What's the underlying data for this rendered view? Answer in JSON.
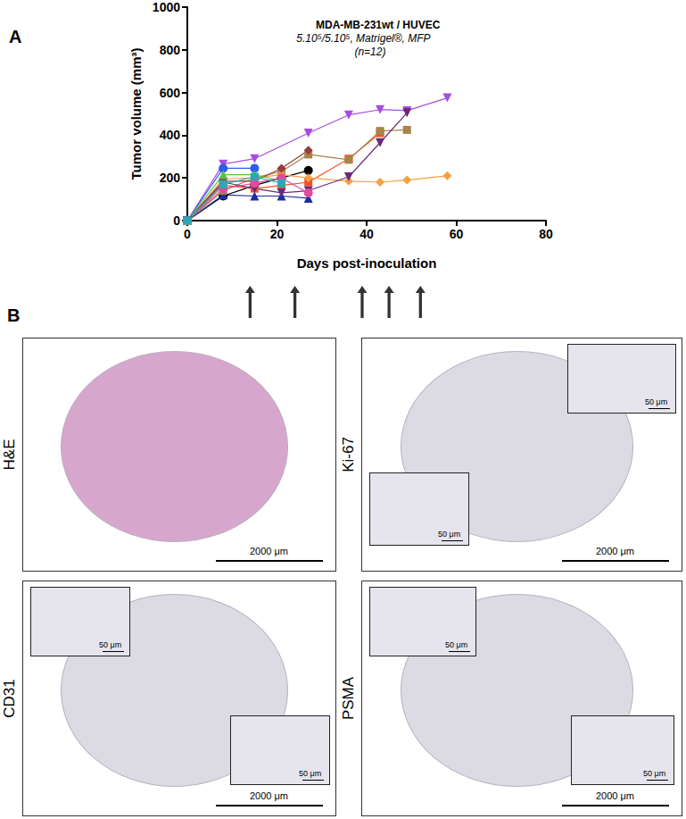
{
  "chart_data": {
    "type": "line",
    "annotation": [
      "MDA-MB-231wt / HUVEC",
      "5.10⁵/5.10⁵, Matrigel®, MFP",
      "(n=12)"
    ],
    "x_label": "Days post-inoculation",
    "y_label": "Tumor volume (mm³)",
    "xlim": [
      0,
      80
    ],
    "xticks": [
      0,
      20,
      40,
      60,
      80
    ],
    "ylim": [
      0,
      1000
    ],
    "yticks": [
      0,
      200,
      400,
      600,
      800,
      1000
    ],
    "grid": false,
    "arrow_days": [
      14,
      24,
      39,
      45,
      52
    ],
    "series": [
      {
        "color": "#a64de0",
        "marker": "triangle-down",
        "x": [
          0,
          8,
          15,
          27,
          36,
          43,
          49,
          58
        ],
        "values": [
          0,
          265,
          290,
          410,
          495,
          520,
          515,
          575
        ]
      },
      {
        "color": "#2f5de8",
        "marker": "circle",
        "x": [
          0,
          8,
          15
        ],
        "values": [
          0,
          245,
          245
        ]
      },
      {
        "color": "#000000",
        "marker": "circle",
        "x": [
          0,
          8,
          15,
          21,
          27
        ],
        "values": [
          0,
          115,
          165,
          200,
          235
        ]
      },
      {
        "color": "#1a2fa0",
        "marker": "triangle",
        "x": [
          0,
          8,
          15,
          21,
          27
        ],
        "values": [
          0,
          120,
          115,
          115,
          105
        ]
      },
      {
        "color": "#f0522a",
        "marker": "square",
        "x": [
          0,
          8,
          15,
          21,
          27,
          36,
          43
        ],
        "values": [
          0,
          165,
          150,
          165,
          180,
          290,
          410
        ]
      },
      {
        "color": "#a8844a",
        "marker": "square",
        "x": [
          0,
          8,
          15,
          21,
          27,
          36,
          43,
          49
        ],
        "values": [
          0,
          140,
          200,
          230,
          310,
          285,
          420,
          425
        ]
      },
      {
        "color": "#f5a040",
        "marker": "diamond",
        "x": [
          0,
          8,
          15,
          21,
          27,
          36,
          43,
          49,
          58
        ],
        "values": [
          0,
          195,
          200,
          215,
          200,
          185,
          180,
          190,
          210
        ]
      },
      {
        "color": "#6a2a78",
        "marker": "triangle-down",
        "x": [
          0,
          8,
          15,
          21,
          27,
          36,
          43,
          49
        ],
        "values": [
          0,
          180,
          150,
          130,
          140,
          205,
          365,
          505
        ]
      },
      {
        "color": "#9a3a3a",
        "marker": "diamond",
        "x": [
          0,
          8,
          15,
          21,
          27
        ],
        "values": [
          0,
          185,
          185,
          245,
          330
        ]
      },
      {
        "color": "#5cc04a",
        "marker": "triangle",
        "x": [
          0,
          8,
          15,
          21
        ],
        "values": [
          0,
          215,
          215,
          185
        ]
      },
      {
        "color": "#e04aa0",
        "marker": "circle",
        "x": [
          0,
          8,
          15,
          21,
          27
        ],
        "values": [
          0,
          150,
          175,
          200,
          130
        ]
      },
      {
        "color": "#2aa8b8",
        "marker": "square",
        "x": [
          0,
          8,
          15,
          21
        ],
        "values": [
          0,
          170,
          205,
          175
        ]
      }
    ]
  },
  "panel_labels": [
    "A",
    "B"
  ],
  "panel_b": [
    {
      "stain": "H&E",
      "scale_bar": "2000 μm",
      "insets": []
    },
    {
      "stain": "Ki-67",
      "scale_bar": "2000 μm",
      "insets": [
        "50 μm",
        "50 μm"
      ]
    },
    {
      "stain": "CD31",
      "scale_bar": "2000 μm",
      "insets": [
        "50 μm",
        "50 μm"
      ]
    },
    {
      "stain": "PSMA",
      "scale_bar": "2000 μm",
      "insets": [
        "50 μm",
        "50 μm"
      ]
    }
  ]
}
